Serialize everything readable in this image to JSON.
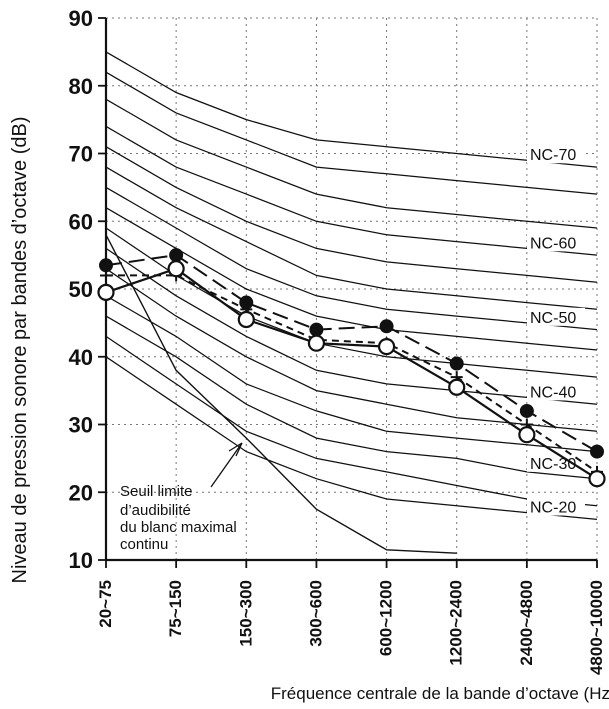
{
  "chart_data": {
    "type": "line",
    "title": "",
    "xlabel": "Fréquence centrale de la bande d’octave (Hz",
    "ylabel": "Niveau de pression sonore par bandes d’octave (dB)",
    "categories": [
      "20~75",
      "75~150",
      "150~300",
      "300~600",
      "600~1200",
      "1200~2400",
      "2400~4800",
      "4800~10000"
    ],
    "ylim": [
      10,
      90
    ],
    "yticks": [
      10,
      20,
      30,
      40,
      50,
      60,
      70,
      80,
      90
    ],
    "grid": true,
    "nc_curves": [
      {
        "name": "NC-70",
        "values": [
          85,
          79,
          75,
          72,
          71,
          70,
          69,
          68
        ]
      },
      {
        "name": "",
        "values": [
          82,
          76,
          72,
          68,
          67,
          66,
          65,
          64
        ]
      },
      {
        "name": "",
        "values": [
          78,
          72,
          68,
          64,
          62,
          61,
          60,
          59
        ]
      },
      {
        "name": "NC-60",
        "values": [
          74,
          68,
          64,
          60,
          58,
          57,
          56,
          55
        ]
      },
      {
        "name": "",
        "values": [
          71,
          65,
          60,
          56,
          54,
          53,
          52,
          51
        ]
      },
      {
        "name": "",
        "values": [
          68,
          62,
          57,
          52,
          50,
          49,
          48,
          47
        ]
      },
      {
        "name": "NC-50",
        "values": [
          65,
          59,
          53,
          49,
          47,
          46,
          45,
          44
        ]
      },
      {
        "name": "",
        "values": [
          62,
          56,
          50,
          46,
          44,
          43,
          42,
          41
        ]
      },
      {
        "name": "",
        "values": [
          59,
          52,
          46,
          42,
          40,
          39,
          38,
          37
        ]
      },
      {
        "name": "NC-40",
        "values": [
          56,
          49,
          43,
          38,
          36,
          35,
          34,
          33
        ]
      },
      {
        "name": "",
        "values": [
          53,
          46,
          40,
          35,
          33,
          31,
          30,
          29
        ]
      },
      {
        "name": "",
        "values": [
          49,
          43,
          36,
          32,
          29,
          28,
          27,
          26
        ]
      },
      {
        "name": "NC-30",
        "values": [
          46,
          40,
          33,
          28,
          26,
          25,
          23,
          22
        ]
      },
      {
        "name": "",
        "values": [
          43,
          36,
          29,
          25,
          23,
          21,
          19,
          18
        ]
      },
      {
        "name": "NC-20",
        "values": [
          40,
          33,
          26,
          22,
          19,
          18,
          17,
          16
        ]
      }
    ],
    "threshold_curve": {
      "name": "Seuil limite d’audibilité",
      "values": [
        58,
        38,
        28,
        17.5,
        11.5,
        11,
        null,
        null
      ]
    },
    "series": [
      {
        "name": "",
        "marker": "filled-circle",
        "line": "dashed-long",
        "values": [
          53.5,
          55,
          48,
          44,
          44.5,
          39,
          32,
          26
        ]
      },
      {
        "name": "",
        "marker": "cross",
        "line": "dashed-short",
        "values": [
          52,
          52,
          47,
          42.5,
          42,
          37,
          30,
          23
        ]
      },
      {
        "name": "",
        "marker": "open-circle",
        "line": "solid",
        "values": [
          49.5,
          53,
          45.5,
          42,
          41.5,
          35.5,
          28.5,
          22
        ]
      }
    ],
    "annotations": {
      "threshold_label": [
        "Seuil  limite",
        "d’audibilité",
        "du blanc maximal",
        "continu"
      ]
    }
  }
}
